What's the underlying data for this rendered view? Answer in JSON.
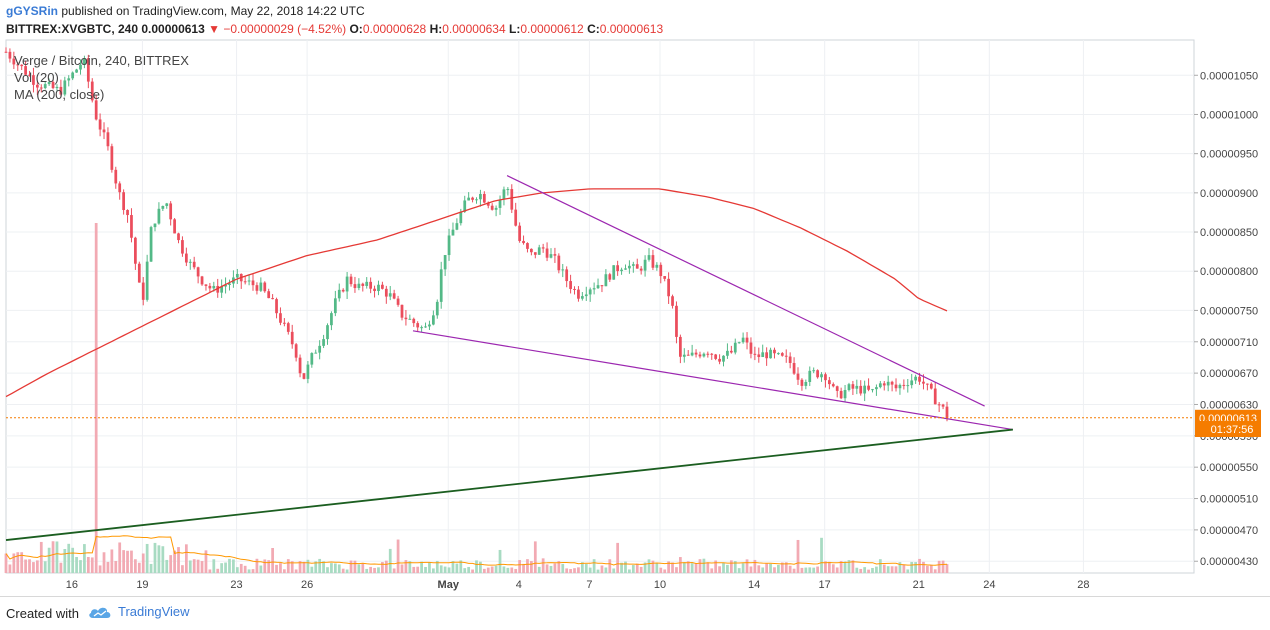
{
  "header": {
    "user": "gGYSRin",
    "published_text": "published on TradingView.com, May 22, 2018 14:22 UTC",
    "symbol": "BITTREX:XVGBTC, 240",
    "last": "0.00000613",
    "change": "−0.00000029 (−4.52%)",
    "o_label": "O:",
    "o": "0.00000628",
    "h_label": "H:",
    "h": "0.00000634",
    "l_label": "L:",
    "l": "0.00000612",
    "c_label": "C:",
    "c": "0.00000613"
  },
  "legend": {
    "title": "Verge / Bitcoin, 240, BITTREX",
    "vol": "Vol (20)",
    "ma": "MA (200, close)"
  },
  "price_label": "0.00000613",
  "countdown_label": "01:37:56",
  "footer": {
    "created": "Created with",
    "brand": "TradingView"
  },
  "colors": {
    "up": "#53b987",
    "down": "#eb4d5c",
    "ma": "#e53935",
    "wedge": "#9c27b0",
    "support": "#1b5e20",
    "price_tag": "#f57c00"
  },
  "chart_data": {
    "type": "candlestick",
    "title": "Verge / Bitcoin, 240, BITTREX",
    "y_ticks": [
      "0.00001050",
      "0.00001000",
      "0.00000950",
      "0.00000900",
      "0.00000850",
      "0.00000800",
      "0.00000750",
      "0.00000710",
      "0.00000670",
      "0.00000630",
      "0.00000590",
      "0.00000550",
      "0.00000510",
      "0.00000470",
      "0.00000430"
    ],
    "y_tick_values": [
      1050,
      1000,
      950,
      900,
      850,
      800,
      750,
      710,
      670,
      630,
      590,
      550,
      510,
      470,
      430
    ],
    "y_range_satoshi": [
      415,
      1095
    ],
    "x_ticks": [
      "16",
      "19",
      "23",
      "26",
      "May",
      "4",
      "7",
      "10",
      "14",
      "17",
      "21",
      "24",
      "28"
    ],
    "x_tick_days": [
      -15,
      -12,
      -8,
      -5,
      1,
      4,
      7,
      10,
      14,
      17,
      21,
      24,
      28
    ],
    "x_range_days": [
      -17.8,
      32.7
    ],
    "anchors_day_close_satoshi": [
      [
        -17.8,
        1080
      ],
      [
        -16.5,
        1040
      ],
      [
        -15.5,
        1030
      ],
      [
        -14.5,
        1070
      ],
      [
        -14.0,
        1000
      ],
      [
        -13.5,
        960
      ],
      [
        -13.0,
        900
      ],
      [
        -12.6,
        870
      ],
      [
        -12.2,
        790
      ],
      [
        -12.0,
        760
      ],
      [
        -11.6,
        860
      ],
      [
        -11.0,
        890
      ],
      [
        -10.5,
        840
      ],
      [
        -10.0,
        810
      ],
      [
        -9.5,
        790
      ],
      [
        -9.0,
        775
      ],
      [
        -8.0,
        790
      ],
      [
        -7.0,
        780
      ],
      [
        -6.5,
        760
      ],
      [
        -6.0,
        730
      ],
      [
        -5.5,
        700
      ],
      [
        -5.2,
        660
      ],
      [
        -4.8,
        690
      ],
      [
        -4.3,
        720
      ],
      [
        -3.8,
        760
      ],
      [
        -3.3,
        790
      ],
      [
        -2.8,
        780
      ],
      [
        -2.0,
        780
      ],
      [
        -1.5,
        770
      ],
      [
        -1.0,
        745
      ],
      [
        0.0,
        725
      ],
      [
        0.5,
        760
      ],
      [
        0.8,
        820
      ],
      [
        1.3,
        860
      ],
      [
        1.8,
        890
      ],
      [
        2.3,
        900
      ],
      [
        3.0,
        880
      ],
      [
        3.5,
        910
      ],
      [
        4.0,
        840
      ],
      [
        4.5,
        820
      ],
      [
        5.0,
        830
      ],
      [
        5.5,
        815
      ],
      [
        6.0,
        790
      ],
      [
        6.5,
        770
      ],
      [
        7.0,
        780
      ],
      [
        7.5,
        785
      ],
      [
        8.0,
        800
      ],
      [
        8.5,
        810
      ],
      [
        9.0,
        800
      ],
      [
        9.5,
        815
      ],
      [
        10.0,
        800
      ],
      [
        10.5,
        760
      ],
      [
        10.8,
        690
      ],
      [
        11.2,
        690
      ],
      [
        12.0,
        700
      ],
      [
        12.5,
        690
      ],
      [
        13.0,
        695
      ],
      [
        13.5,
        715
      ],
      [
        14.0,
        690
      ],
      [
        14.5,
        695
      ],
      [
        15.0,
        690
      ],
      [
        15.5,
        685
      ],
      [
        16.0,
        660
      ],
      [
        16.5,
        670
      ],
      [
        17.0,
        670
      ],
      [
        17.5,
        640
      ],
      [
        18.0,
        650
      ],
      [
        18.5,
        650
      ],
      [
        19.0,
        645
      ],
      [
        19.5,
        660
      ],
      [
        20.0,
        650
      ],
      [
        20.5,
        660
      ],
      [
        21.0,
        665
      ],
      [
        21.5,
        645
      ],
      [
        22.0,
        625
      ],
      [
        22.3,
        613
      ]
    ],
    "ma200_day_satoshi": [
      [
        -17.8,
        640
      ],
      [
        -16,
        670
      ],
      [
        -14,
        700
      ],
      [
        -12,
        730
      ],
      [
        -10,
        760
      ],
      [
        -8,
        790
      ],
      [
        -5,
        820
      ],
      [
        -2,
        840
      ],
      [
        1,
        870
      ],
      [
        3,
        890
      ],
      [
        5,
        900
      ],
      [
        7,
        905
      ],
      [
        9,
        905
      ],
      [
        10,
        905
      ],
      [
        12,
        895
      ],
      [
        14,
        880
      ],
      [
        16,
        855
      ],
      [
        18,
        825
      ],
      [
        20,
        790
      ],
      [
        21,
        765
      ],
      [
        22,
        752
      ],
      [
        22.3,
        748
      ]
    ],
    "volume_relative": {
      "peak_day": -14.0,
      "peak": 1.0,
      "typical": 0.08
    },
    "trendlines": [
      {
        "name": "wedge-upper",
        "from": [
          3.5,
          922
        ],
        "to": [
          23.8,
          628
        ]
      },
      {
        "name": "wedge-lower",
        "from": [
          -0.5,
          724
        ],
        "to": [
          25.0,
          598
        ]
      },
      {
        "name": "support-line",
        "from": [
          -17.8,
          457
        ],
        "to": [
          25.0,
          598
        ]
      }
    ],
    "last_price_satoshi": 613
  }
}
